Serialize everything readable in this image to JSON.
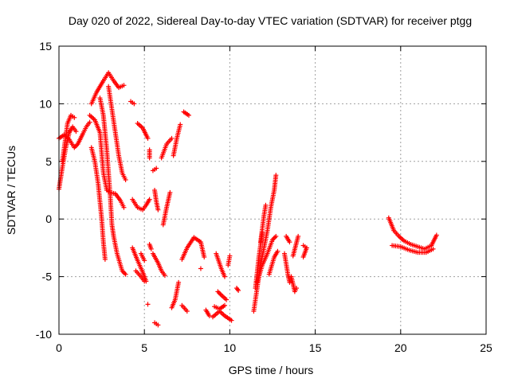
{
  "chart_data": {
    "type": "scatter",
    "title": "Day 020 of 2022, Sidereal Day-to-day VTEC variation (SDTVAR) for receiver ptgg",
    "xlabel": "GPS time / hours",
    "ylabel": "SDTVAR / TECUs",
    "xlim": [
      0,
      25
    ],
    "ylim": [
      -10,
      15
    ],
    "xticks": [
      "0",
      "5",
      "10",
      "15",
      "20",
      "25"
    ],
    "yticks": [
      "-10",
      "-5",
      "0",
      "5",
      "10",
      "15"
    ],
    "grid": true,
    "marker": "+",
    "color": "#ff0000",
    "series": [
      {
        "tracks": [
          [
            [
              0.0,
              2.6
            ],
            [
              0.2,
              4.5
            ],
            [
              0.4,
              6.2
            ],
            [
              0.6,
              7.5
            ],
            [
              0.8,
              8.0
            ],
            [
              1.0,
              7.6
            ]
          ],
          [
            [
              0.0,
              7.0
            ],
            [
              0.3,
              7.3
            ],
            [
              0.6,
              6.9
            ],
            [
              0.9,
              6.2
            ],
            [
              1.1,
              6.5
            ],
            [
              1.4,
              7.4
            ],
            [
              1.6,
              8.0
            ],
            [
              1.8,
              8.4
            ]
          ],
          [
            [
              0.2,
              5.0
            ],
            [
              0.5,
              8.3
            ],
            [
              0.7,
              9.0
            ],
            [
              0.9,
              8.8
            ]
          ],
          [
            [
              1.9,
              10.0
            ],
            [
              2.2,
              11.0
            ],
            [
              2.6,
              12.0
            ],
            [
              2.9,
              12.7
            ],
            [
              3.2,
              12.0
            ],
            [
              3.5,
              11.4
            ],
            [
              3.8,
              11.6
            ]
          ],
          [
            [
              1.8,
              9.0
            ],
            [
              2.1,
              8.6
            ],
            [
              2.4,
              7.5
            ],
            [
              2.6,
              4.0
            ],
            [
              2.8,
              2.5
            ],
            [
              3.0,
              2.3
            ],
            [
              3.3,
              2.2
            ],
            [
              3.6,
              1.6
            ],
            [
              3.8,
              1.0
            ]
          ],
          [
            [
              1.9,
              6.2
            ],
            [
              2.1,
              5.0
            ],
            [
              2.3,
              3.0
            ],
            [
              2.5,
              0.0
            ],
            [
              2.6,
              -2.0
            ],
            [
              2.7,
              -3.5
            ]
          ],
          [
            [
              2.4,
              10.5
            ],
            [
              2.6,
              9.0
            ],
            [
              2.8,
              6.0
            ],
            [
              3.0,
              2.0
            ],
            [
              3.1,
              -0.5
            ],
            [
              3.2,
              -1.5
            ],
            [
              3.4,
              -3.0
            ],
            [
              3.7,
              -4.5
            ],
            [
              3.9,
              -4.8
            ]
          ],
          [
            [
              2.9,
              11.5
            ],
            [
              3.1,
              9.5
            ],
            [
              3.3,
              7.5
            ],
            [
              3.5,
              5.5
            ],
            [
              3.7,
              4.0
            ],
            [
              3.9,
              3.4
            ]
          ],
          [
            [
              4.2,
              10.2
            ],
            [
              4.4,
              10.0
            ]
          ],
          [
            [
              4.6,
              8.3
            ],
            [
              4.9,
              7.9
            ],
            [
              5.2,
              7.0
            ]
          ],
          [
            [
              4.3,
              1.7
            ],
            [
              4.6,
              1.0
            ],
            [
              4.9,
              0.8
            ],
            [
              5.1,
              1.2
            ],
            [
              5.3,
              1.7
            ]
          ],
          [
            [
              4.3,
              -2.5
            ],
            [
              4.6,
              -3.6
            ],
            [
              4.9,
              -4.6
            ],
            [
              5.1,
              -5.4
            ]
          ],
          [
            [
              4.5,
              -4.5
            ],
            [
              4.8,
              -5.0
            ],
            [
              5.0,
              -5.4
            ]
          ],
          [
            [
              4.8,
              -3.0
            ],
            [
              5.0,
              -3.6
            ]
          ],
          [
            [
              5.3,
              6.0
            ],
            [
              5.3,
              5.3
            ]
          ],
          [
            [
              5.5,
              4.2
            ],
            [
              5.7,
              4.4
            ]
          ],
          [
            [
              5.6,
              2.5
            ],
            [
              5.7,
              1.5
            ],
            [
              5.8,
              0.8
            ]
          ],
          [
            [
              5.3,
              -2.2
            ],
            [
              5.4,
              -2.6
            ]
          ],
          [
            [
              5.5,
              -3.0
            ],
            [
              5.8,
              -3.8
            ],
            [
              6.0,
              -4.5
            ],
            [
              6.2,
              -4.9
            ]
          ],
          [
            [
              5.6,
              -9.0
            ],
            [
              5.8,
              -9.2
            ]
          ],
          [
            [
              5.2,
              -7.4
            ]
          ],
          [
            [
              6.1,
              -0.5
            ],
            [
              6.3,
              1.0
            ],
            [
              6.5,
              2.3
            ]
          ],
          [
            [
              6.0,
              5.3
            ],
            [
              6.3,
              6.5
            ],
            [
              6.6,
              7.0
            ]
          ],
          [
            [
              6.7,
              5.5
            ],
            [
              6.9,
              7.0
            ],
            [
              7.1,
              8.2
            ]
          ],
          [
            [
              7.3,
              9.3
            ],
            [
              7.6,
              9.0
            ]
          ],
          [
            [
              6.6,
              -7.7
            ],
            [
              6.8,
              -7.0
            ],
            [
              7.0,
              -5.5
            ]
          ],
          [
            [
              7.2,
              -3.5
            ],
            [
              7.5,
              -2.5
            ],
            [
              7.9,
              -1.6
            ],
            [
              8.3,
              -2.0
            ],
            [
              8.5,
              -3.3
            ]
          ],
          [
            [
              7.2,
              -7.5
            ],
            [
              7.5,
              -8.0
            ]
          ],
          [
            [
              8.3,
              -4.3
            ]
          ],
          [
            [
              8.6,
              -7.9
            ],
            [
              8.8,
              -8.4
            ]
          ],
          [
            [
              9.0,
              -8.5
            ],
            [
              9.4,
              -8.0
            ],
            [
              9.7,
              -8.4
            ],
            [
              10.1,
              -8.8
            ]
          ],
          [
            [
              9.1,
              -7.6
            ],
            [
              9.4,
              -7.8
            ],
            [
              9.7,
              -7.5
            ]
          ],
          [
            [
              9.2,
              -3.0
            ],
            [
              9.5,
              -4.3
            ],
            [
              9.7,
              -5.0
            ]
          ],
          [
            [
              9.3,
              -6.3
            ],
            [
              9.5,
              -6.6
            ],
            [
              9.8,
              -7.0
            ]
          ],
          [
            [
              9.9,
              -4.0
            ],
            [
              10.0,
              -3.2
            ]
          ],
          [
            [
              10.4,
              -6.0
            ],
            [
              10.5,
              -6.2
            ]
          ],
          [
            [
              11.4,
              -8.0
            ],
            [
              11.6,
              -6.0
            ],
            [
              11.8,
              -4.0
            ],
            [
              12.0,
              -2.5
            ],
            [
              12.2,
              -1.0
            ],
            [
              12.4,
              1.0
            ],
            [
              12.6,
              2.5
            ],
            [
              12.7,
              3.8
            ]
          ],
          [
            [
              11.6,
              -5.5
            ],
            [
              11.9,
              -4.0
            ],
            [
              12.2,
              -3.0
            ],
            [
              12.5,
              -1.8
            ],
            [
              12.7,
              -1.5
            ]
          ],
          [
            [
              11.8,
              -2.0
            ],
            [
              12.0,
              0.3
            ],
            [
              12.1,
              1.2
            ]
          ],
          [
            [
              11.5,
              -6.0
            ],
            [
              11.7,
              -3.3
            ],
            [
              11.9,
              -1.2
            ]
          ],
          [
            [
              12.3,
              -4.8
            ],
            [
              12.6,
              -3.3
            ],
            [
              12.8,
              -2.8
            ]
          ],
          [
            [
              13.2,
              -3.0
            ],
            [
              13.4,
              -4.8
            ],
            [
              13.5,
              -5.5
            ]
          ],
          [
            [
              13.3,
              -1.5
            ],
            [
              13.5,
              -2.0
            ]
          ],
          [
            [
              13.6,
              -5.0
            ],
            [
              13.8,
              -6.3
            ],
            [
              13.9,
              -6.0
            ]
          ],
          [
            [
              13.7,
              -3.2
            ],
            [
              14.0,
              -1.5
            ]
          ],
          [
            [
              14.3,
              -2.3
            ],
            [
              14.5,
              -2.5
            ],
            [
              14.3,
              -3.3
            ]
          ],
          [
            [
              19.3,
              0.1
            ],
            [
              19.6,
              -1.0
            ],
            [
              19.9,
              -1.5
            ],
            [
              20.2,
              -1.9
            ],
            [
              20.6,
              -2.2
            ],
            [
              21.0,
              -2.4
            ],
            [
              21.4,
              -2.6
            ],
            [
              21.8,
              -2.3
            ],
            [
              22.1,
              -1.4
            ]
          ],
          [
            [
              19.5,
              -2.3
            ],
            [
              20.0,
              -2.4
            ],
            [
              20.5,
              -2.7
            ],
            [
              21.0,
              -2.9
            ],
            [
              21.5,
              -2.9
            ],
            [
              21.9,
              -2.6
            ]
          ]
        ]
      }
    ]
  }
}
